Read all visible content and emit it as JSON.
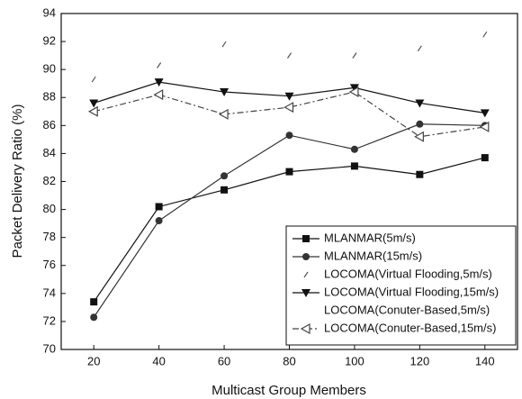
{
  "chart_data": {
    "type": "line",
    "x_label": "Multicast Group Members",
    "y_label": "Packet Delivery Ratio (%)",
    "x": [
      20,
      40,
      60,
      80,
      100,
      120,
      140
    ],
    "xlim": [
      10,
      150
    ],
    "xticks": [
      20,
      40,
      60,
      80,
      100,
      120,
      140
    ],
    "ylim": [
      70,
      94
    ],
    "yticks": [
      70,
      72,
      74,
      76,
      78,
      80,
      82,
      84,
      86,
      88,
      90,
      92,
      94
    ],
    "legend": "lower right",
    "series": [
      {
        "name": "MLANMAR(5m/s)",
        "color": "#111111",
        "marker": "square",
        "line": "solid",
        "values": [
          73.4,
          80.2,
          81.4,
          82.7,
          83.1,
          82.5,
          83.7
        ]
      },
      {
        "name": "MLANMAR(15m/s)",
        "color": "#333333",
        "marker": "circle",
        "line": "solid",
        "values": [
          72.3,
          79.2,
          82.4,
          85.3,
          84.3,
          86.1,
          86.0
        ]
      },
      {
        "name": "LOCOMA(Virtual Flooding,5m/s)",
        "color": "#555555",
        "marker": "tick",
        "line": "none",
        "values": [
          89.3,
          90.3,
          91.8,
          91.0,
          91.0,
          91.5,
          92.5
        ]
      },
      {
        "name": "LOCOMA(Virtual Flooding,15m/s)",
        "color": "#111111",
        "marker": "triangle-down",
        "line": "solid",
        "values": [
          87.6,
          89.1,
          88.4,
          88.1,
          88.7,
          87.6,
          86.9
        ]
      },
      {
        "name": "LOCOMA(Conuter-Based,5m/s)",
        "color": "#777777",
        "marker": "none",
        "line": "none",
        "values": [
          null,
          null,
          null,
          null,
          null,
          null,
          null
        ]
      },
      {
        "name": "LOCOMA(Conuter-Based,15m/s)",
        "color": "#444444",
        "marker": "triangle-left",
        "line": "dashdot",
        "values": [
          87.0,
          88.2,
          86.8,
          87.3,
          88.4,
          85.2,
          85.9
        ]
      }
    ]
  }
}
